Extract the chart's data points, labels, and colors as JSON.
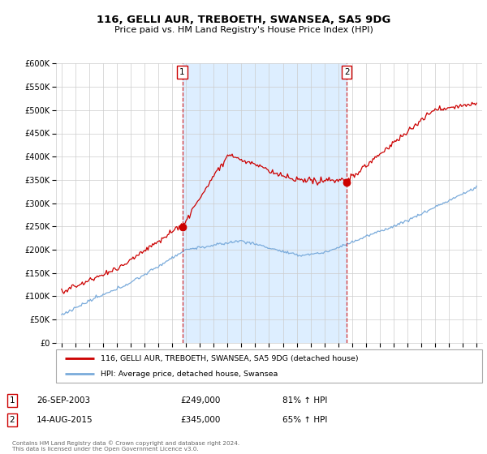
{
  "title": "116, GELLI AUR, TREBOETH, SWANSEA, SA5 9DG",
  "subtitle": "Price paid vs. HM Land Registry's House Price Index (HPI)",
  "ylim": [
    0,
    600000
  ],
  "yticks": [
    0,
    50000,
    100000,
    150000,
    200000,
    250000,
    300000,
    350000,
    400000,
    450000,
    500000,
    550000,
    600000
  ],
  "ytick_labels": [
    "£0",
    "£50K",
    "£100K",
    "£150K",
    "£200K",
    "£250K",
    "£300K",
    "£350K",
    "£400K",
    "£450K",
    "£500K",
    "£550K",
    "£600K"
  ],
  "sale1_date": 2003.73,
  "sale1_price": 249000,
  "sale1_label": "1",
  "sale1_text": "26-SEP-2003",
  "sale1_amount": "£249,000",
  "sale1_hpi": "81% ↑ HPI",
  "sale2_date": 2015.61,
  "sale2_price": 345000,
  "sale2_label": "2",
  "sale2_text": "14-AUG-2015",
  "sale2_amount": "£345,000",
  "sale2_hpi": "65% ↑ HPI",
  "legend_line1": "116, GELLI AUR, TREBOETH, SWANSEA, SA5 9DG (detached house)",
  "legend_line2": "HPI: Average price, detached house, Swansea",
  "footer": "Contains HM Land Registry data © Crown copyright and database right 2024.\nThis data is licensed under the Open Government Licence v3.0.",
  "red_color": "#cc0000",
  "blue_color": "#7aabdb",
  "shade_color": "#ddeeff",
  "bg_color": "#ffffff",
  "grid_color": "#cccccc"
}
